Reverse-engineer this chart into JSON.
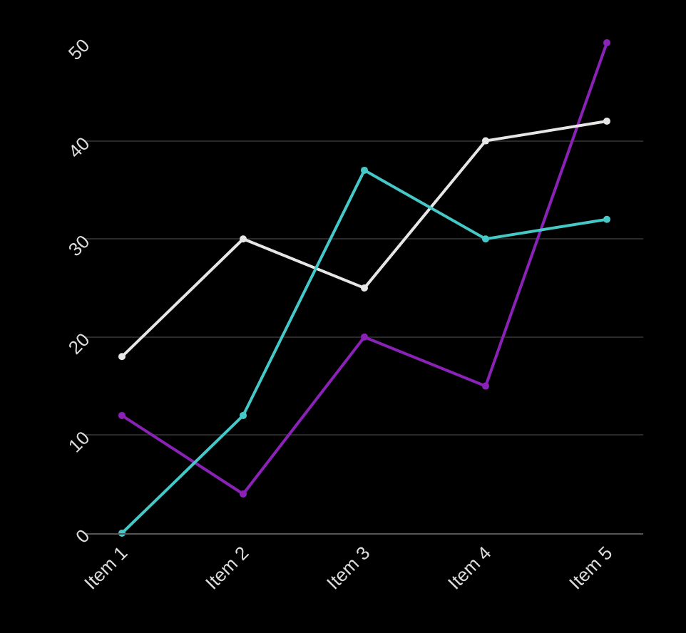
{
  "chart_data": {
    "type": "line",
    "categories": [
      "Item 1",
      "Item 2",
      "Item 3",
      "Item 4",
      "Item 5"
    ],
    "series": [
      {
        "color": "#8a22b8",
        "values": [
          12,
          4,
          20,
          15,
          50
        ]
      },
      {
        "color": "#e6e6e6",
        "values": [
          18,
          30,
          25,
          40,
          42
        ]
      },
      {
        "color": "#45c8c8",
        "values": [
          0,
          12,
          37,
          30,
          32
        ]
      }
    ],
    "ylim": [
      0,
      50
    ],
    "yticks": [
      0,
      10,
      20,
      30,
      40,
      50
    ],
    "grid": "y",
    "marker": "circle",
    "line_style": "solid"
  }
}
